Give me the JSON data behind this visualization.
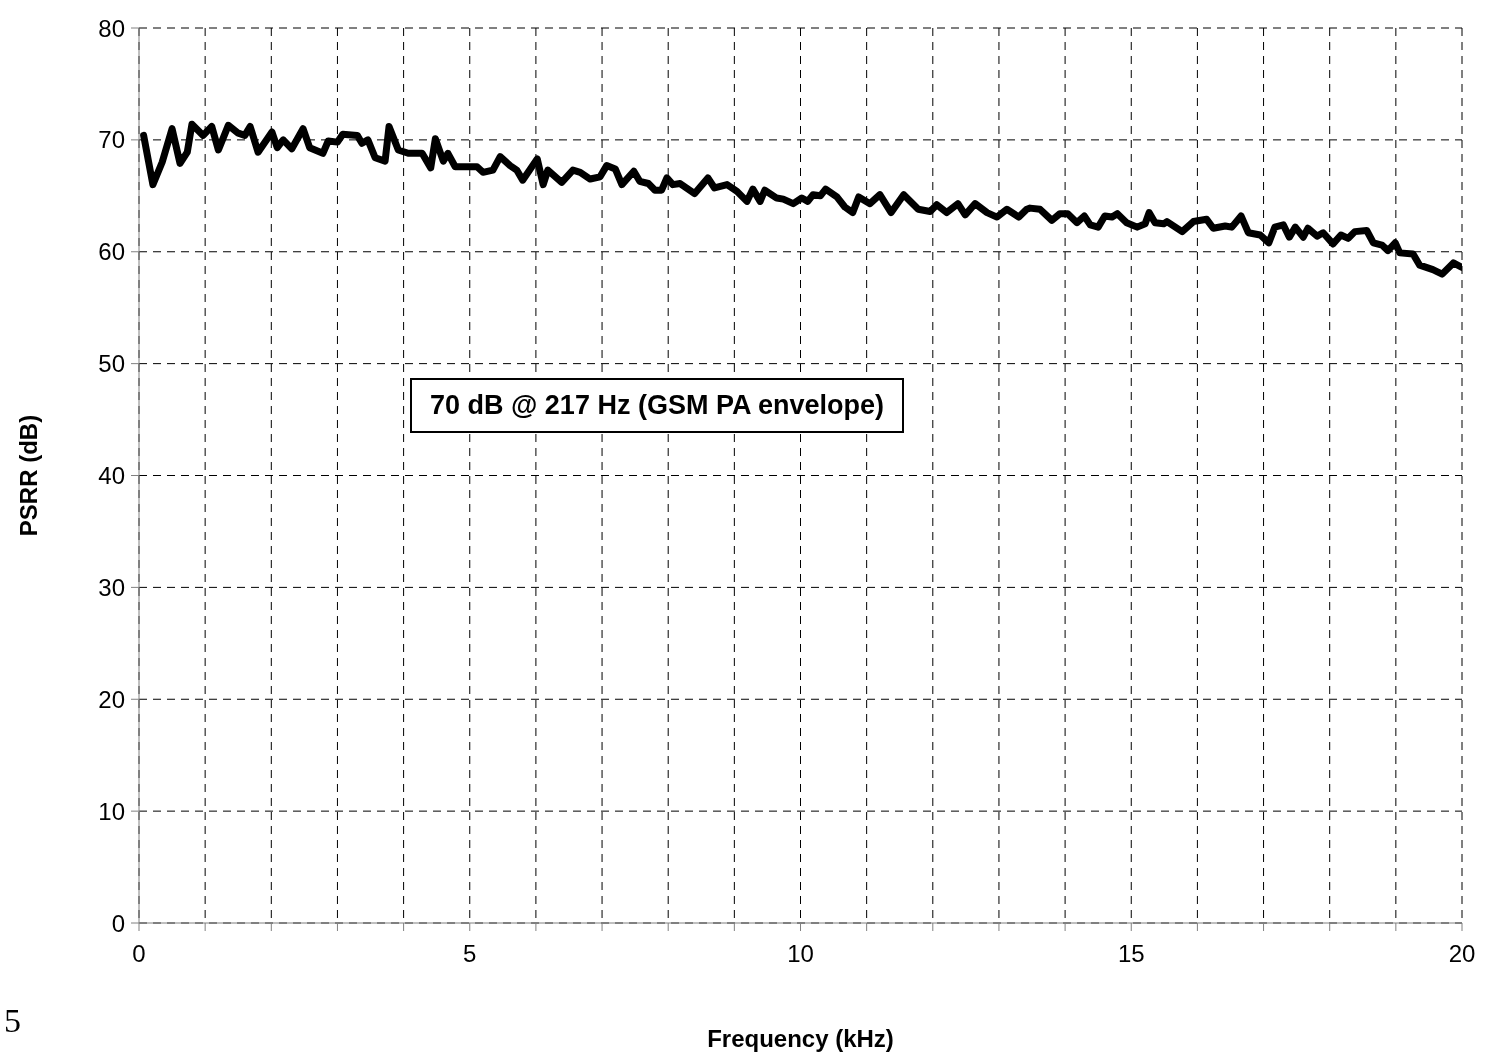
{
  "chart_data": {
    "type": "line",
    "xlabel": "Frequency (kHz)",
    "ylabel": "PSRR (dB)",
    "annotations": [
      "70 dB @ 217 Hz (GSM PA envelope)",
      "5"
    ],
    "xlim": [
      0,
      20
    ],
    "xticks": [
      0,
      {
        "value": 1,
        "label": null
      },
      {
        "value": 2,
        "label": null
      },
      {
        "value": 3,
        "label": null
      },
      {
        "value": 4,
        "label": null
      },
      5,
      {
        "value": 6,
        "label": null
      },
      {
        "value": 7,
        "label": null
      },
      {
        "value": 8,
        "label": null
      },
      {
        "value": 9,
        "label": null
      },
      10,
      {
        "value": 11,
        "label": null
      },
      {
        "value": 12,
        "label": null
      },
      {
        "value": 13,
        "label": null
      },
      {
        "value": 14,
        "label": null
      },
      15,
      {
        "value": 16,
        "label": null
      },
      {
        "value": 17,
        "label": null
      },
      {
        "value": 18,
        "label": null
      },
      {
        "value": 19,
        "label": null
      },
      20
    ],
    "ylim": [
      0,
      80
    ],
    "yticks": [
      0,
      10,
      20,
      30,
      40,
      50,
      60,
      70,
      80
    ],
    "grid": true,
    "legend": false,
    "marker": "none",
    "line_style": "solid",
    "series": [
      {
        "color": "#000000",
        "x": [
          0.07,
          0.21,
          0.35,
          0.5,
          0.62,
          0.73,
          0.8,
          0.97,
          1.1,
          1.2,
          1.35,
          1.5,
          1.6,
          1.68,
          1.8,
          2.01,
          2.09,
          2.18,
          2.31,
          2.48,
          2.58,
          2.78,
          2.86,
          3.0,
          3.08,
          3.3,
          3.37,
          3.46,
          3.57,
          3.72,
          3.78,
          3.92,
          4.07,
          4.28,
          4.41,
          4.48,
          4.6,
          4.67,
          4.78,
          5.11,
          5.2,
          5.35,
          5.46,
          5.61,
          5.71,
          5.8,
          6.02,
          6.11,
          6.18,
          6.39,
          6.56,
          6.67,
          6.82,
          6.97,
          7.07,
          7.2,
          7.3,
          7.48,
          7.57,
          7.7,
          7.8,
          7.9,
          7.98,
          8.07,
          8.18,
          8.4,
          8.6,
          8.7,
          8.89,
          9.04,
          9.19,
          9.28,
          9.39,
          9.46,
          9.64,
          9.74,
          9.89,
          10.02,
          10.11,
          10.19,
          10.3,
          10.38,
          10.55,
          10.67,
          10.79,
          10.88,
          11.05,
          11.2,
          11.37,
          11.56,
          11.78,
          11.96,
          12.06,
          12.21,
          12.38,
          12.49,
          12.64,
          12.82,
          12.97,
          13.12,
          13.3,
          13.42,
          13.47,
          13.62,
          13.8,
          13.92,
          14.04,
          14.18,
          14.29,
          14.38,
          14.5,
          14.6,
          14.71,
          14.79,
          14.93,
          15.09,
          15.21,
          15.27,
          15.36,
          15.49,
          15.54,
          15.77,
          15.94,
          16.14,
          16.24,
          16.42,
          16.52,
          16.66,
          16.77,
          16.95,
          17.08,
          17.17,
          17.3,
          17.39,
          17.48,
          17.6,
          17.67,
          17.81,
          17.9,
          18.05,
          18.17,
          18.28,
          18.38,
          18.56,
          18.66,
          18.79,
          18.88,
          18.99,
          19.06,
          19.26,
          19.36,
          19.56,
          19.7,
          19.87,
          20.0
        ],
        "values": [
          70.4,
          66.0,
          68.0,
          71.0,
          67.9,
          68.9,
          71.4,
          70.4,
          71.2,
          69.1,
          71.3,
          70.6,
          70.4,
          71.2,
          68.9,
          70.7,
          69.3,
          70.0,
          69.2,
          71.0,
          69.3,
          68.8,
          69.9,
          69.8,
          70.5,
          70.4,
          69.7,
          70.0,
          68.4,
          68.1,
          71.2,
          69.1,
          68.8,
          68.8,
          67.5,
          70.1,
          68.1,
          68.8,
          67.6,
          67.6,
          67.1,
          67.3,
          68.5,
          67.7,
          67.3,
          66.4,
          68.3,
          66.0,
          67.3,
          66.2,
          67.3,
          67.1,
          66.5,
          66.7,
          67.7,
          67.4,
          66.0,
          67.2,
          66.3,
          66.1,
          65.5,
          65.5,
          66.6,
          66.0,
          66.1,
          65.2,
          66.6,
          65.7,
          66.0,
          65.4,
          64.5,
          65.6,
          64.5,
          65.5,
          64.8,
          64.7,
          64.3,
          64.8,
          64.5,
          65.1,
          65.0,
          65.6,
          64.9,
          64.0,
          63.5,
          64.9,
          64.3,
          65.1,
          63.5,
          65.1,
          63.8,
          63.6,
          64.2,
          63.5,
          64.3,
          63.3,
          64.3,
          63.5,
          63.1,
          63.8,
          63.1,
          63.8,
          63.9,
          63.8,
          62.8,
          63.4,
          63.4,
          62.6,
          63.2,
          62.4,
          62.2,
          63.2,
          63.1,
          63.4,
          62.6,
          62.2,
          62.5,
          63.5,
          62.6,
          62.5,
          62.7,
          61.8,
          62.7,
          62.9,
          62.1,
          62.3,
          62.2,
          63.2,
          61.7,
          61.5,
          60.8,
          62.2,
          62.4,
          61.3,
          62.2,
          61.3,
          62.1,
          61.4,
          61.7,
          60.7,
          61.5,
          61.2,
          61.8,
          61.9,
          60.8,
          60.6,
          60.1,
          60.8,
          59.9,
          59.8,
          58.8,
          58.4,
          58.0,
          59.0,
          58.6
        ]
      }
    ]
  }
}
